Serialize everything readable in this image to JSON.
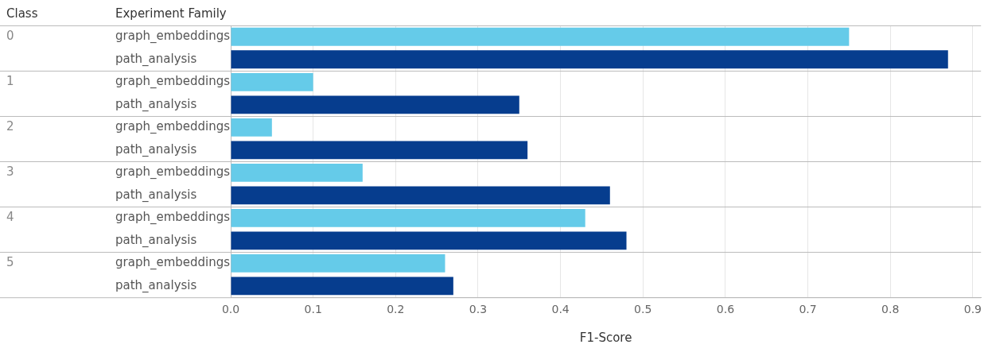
{
  "chart_data": {
    "type": "bar",
    "orientation": "horizontal",
    "ylabel": "Experiment Family",
    "xlabel": "F1-Score",
    "annotations": [
      "Class",
      "0",
      "1",
      "2",
      "3",
      "4",
      "5"
    ],
    "categories": [
      "graph_embeddings",
      "path_analysis",
      "graph_embeddings",
      "path_analysis",
      "graph_embeddings",
      "path_analysis",
      "graph_embeddings",
      "path_analysis",
      "graph_embeddings",
      "path_analysis",
      "graph_embeddings",
      "path_analysis"
    ],
    "series": [
      {
        "colors": [
          "#65cbe9",
          "#063d8e",
          "#65cbe9",
          "#063d8e",
          "#65cbe9",
          "#063d8e",
          "#65cbe9",
          "#063d8e",
          "#65cbe9",
          "#063d8e",
          "#65cbe9",
          "#063d8e"
        ],
        "values": [
          0.75,
          0.87,
          0.1,
          0.35,
          0.05,
          0.36,
          0.16,
          0.46,
          0.43,
          0.48,
          0.26,
          0.27
        ]
      }
    ],
    "xlim": [
      0,
      0.91
    ],
    "xticks": [
      {
        "value": 0,
        "label": "0.0"
      },
      0.1,
      0.2,
      0.3,
      0.4,
      0.5,
      0.6,
      0.7,
      0.8,
      0.9
    ],
    "grid": "x"
  }
}
